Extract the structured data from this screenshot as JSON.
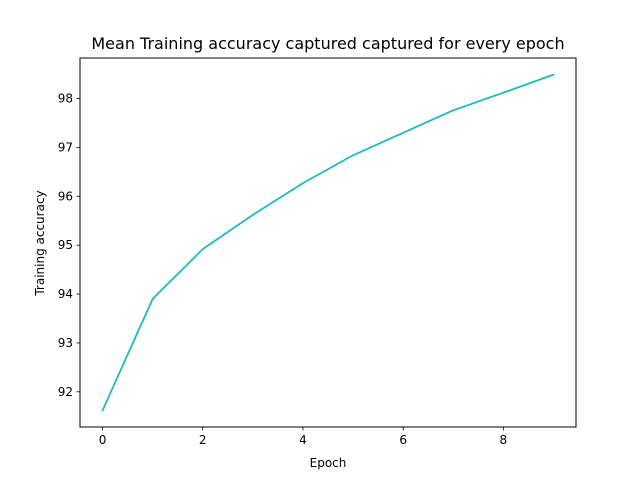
{
  "chart_data": {
    "type": "line",
    "title": "Mean Training accuracy captured captured for every epoch",
    "xlabel": "Epoch",
    "ylabel": "Training accuracy",
    "xlim": [
      -0.45,
      9.45
    ],
    "ylim": [
      91.28,
      98.83
    ],
    "x_ticks": [
      0,
      2,
      4,
      6,
      8
    ],
    "y_ticks": [
      92,
      93,
      94,
      95,
      96,
      97,
      98
    ],
    "grid": false,
    "series": [
      {
        "color": "#1f77b4",
        "x": [
          0,
          1,
          2,
          3,
          4,
          5,
          6,
          7,
          8,
          9
        ],
        "y": [
          91.62,
          93.9,
          94.92,
          95.62,
          96.27,
          96.84,
          97.3,
          97.76,
          98.12,
          98.49
        ]
      },
      {
        "color": "#2ca02c",
        "x": [
          0,
          1,
          2,
          3,
          4,
          5,
          6,
          7,
          8,
          9
        ],
        "y": [
          91.62,
          93.9,
          94.92,
          95.62,
          96.27,
          96.84,
          97.3,
          97.76,
          98.12,
          98.49
        ]
      },
      {
        "color": "#17becf",
        "x": [
          0,
          1,
          2,
          3,
          4,
          5,
          6,
          7,
          8,
          9
        ],
        "y": [
          91.62,
          93.9,
          94.92,
          95.62,
          96.27,
          96.84,
          97.3,
          97.76,
          98.12,
          98.49
        ]
      }
    ]
  }
}
